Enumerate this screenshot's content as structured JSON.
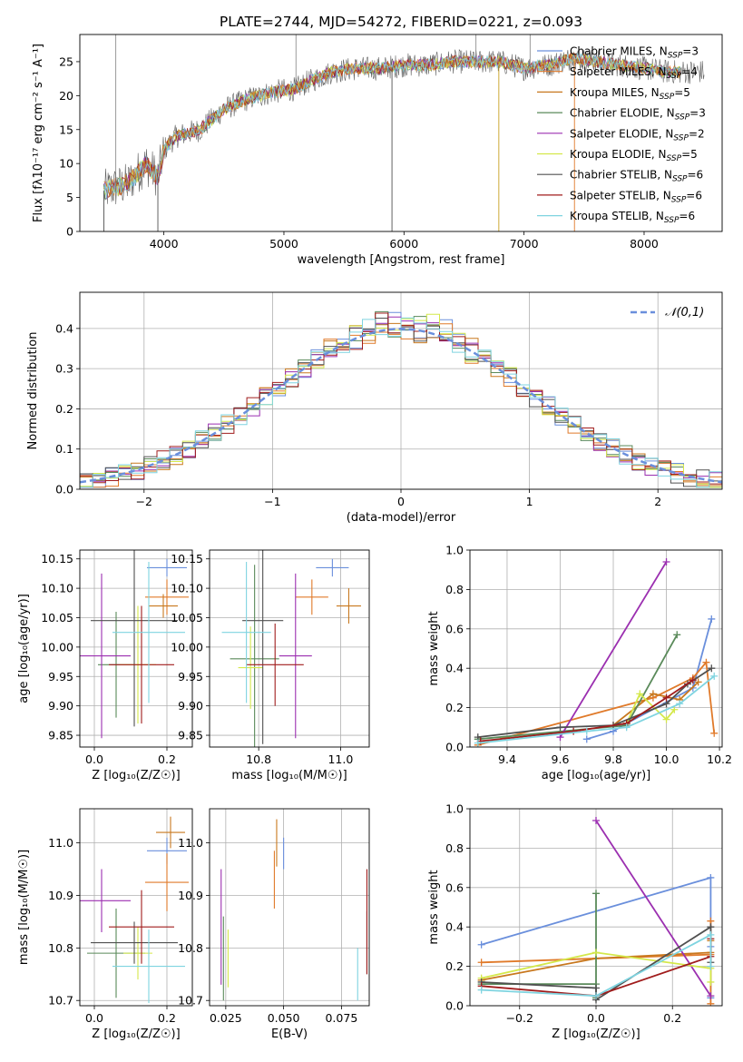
{
  "figure_title": "PLATE=2744, MJD=54272, FIBERID=0221, z=0.093",
  "models": [
    {
      "name": "Chabrier MILES",
      "nssp": "3",
      "color": "#6a8fdc"
    },
    {
      "name": "Salpeter MILES",
      "nssp": "4",
      "color": "#e07a2a"
    },
    {
      "name": "Kroupa MILES",
      "nssp": "5",
      "color": "#c8781e"
    },
    {
      "name": "Chabrier ELODIE",
      "nssp": "3",
      "color": "#5a8a5a"
    },
    {
      "name": "Salpeter ELODIE",
      "nssp": "2",
      "color": "#9b2fb0"
    },
    {
      "name": "Kroupa ELODIE",
      "nssp": "5",
      "color": "#d4e84a"
    },
    {
      "name": "Chabrier STELIB",
      "nssp": "6",
      "color": "#505050"
    },
    {
      "name": "Salpeter STELIB",
      "nssp": "6",
      "color": "#a01c1c"
    },
    {
      "name": "Kroupa STELIB",
      "nssp": "6",
      "color": "#7fd4e0"
    }
  ],
  "chart_data": [
    {
      "id": "spectrum",
      "type": "line",
      "title": "PLATE=2744, MJD=54272, FIBERID=0221, z=0.093",
      "xlabel": "wavelength [Angstrom, rest frame]",
      "ylabel": "Flux [fλ10⁻¹⁷ erg cm⁻² s⁻¹ A⁻¹]",
      "xlim": [
        3300,
        8650
      ],
      "ylim": [
        0,
        29
      ],
      "xticks": [
        4000,
        5000,
        6000,
        7000,
        8000
      ],
      "yticks": [
        0,
        5,
        10,
        15,
        20,
        25
      ],
      "grid": false,
      "legend": "upper right",
      "continuum_points": [
        [
          3500,
          6
        ],
        [
          3700,
          7
        ],
        [
          3850,
          10
        ],
        [
          3950,
          8
        ],
        [
          4000,
          12
        ],
        [
          4100,
          14
        ],
        [
          4300,
          15
        ],
        [
          4500,
          18
        ],
        [
          4700,
          19.5
        ],
        [
          4900,
          20.5
        ],
        [
          5100,
          21
        ],
        [
          5200,
          22
        ],
        [
          5400,
          23.5
        ],
        [
          5600,
          24
        ],
        [
          5800,
          24
        ],
        [
          6000,
          24.5
        ],
        [
          6200,
          24.5
        ],
        [
          6400,
          25
        ],
        [
          6600,
          25
        ],
        [
          6800,
          25
        ],
        [
          7000,
          24
        ],
        [
          7200,
          24.5
        ],
        [
          7400,
          25.5
        ],
        [
          7600,
          25
        ],
        [
          7800,
          24.5
        ],
        [
          8000,
          24
        ],
        [
          8200,
          23.5
        ],
        [
          8400,
          23.5
        ]
      ],
      "spikes_down": [
        3500,
        3950,
        5900,
        6790,
        7420
      ],
      "spikes_up": [
        3600,
        5100,
        6600,
        7050
      ]
    },
    {
      "id": "residuals",
      "type": "step",
      "xlabel": "(data-model)/error",
      "ylabel": "Normed distribution",
      "xlim": [
        -2.5,
        2.5
      ],
      "ylim": [
        0,
        0.49
      ],
      "xticks": [
        -2,
        -1,
        0,
        1,
        2
      ],
      "yticks": [
        0.0,
        0.1,
        0.2,
        0.3,
        0.4
      ],
      "grid": true,
      "legend": "upper right",
      "reference": {
        "label": "𝒩(0,1)",
        "color": "#6a8fdc"
      },
      "bin_width": 0.1
    },
    {
      "id": "age_vs_Z",
      "type": "errorbar",
      "xlabel": "Z [log₁₀(Z/Z☉)]",
      "ylabel": "age  [log₁₀(age/yr)]",
      "xlim": [
        -0.04,
        0.27
      ],
      "ylim": [
        9.83,
        10.165
      ],
      "xticks": [
        0.0,
        0.2
      ],
      "yticks": [
        9.85,
        9.9,
        9.95,
        10.0,
        10.05,
        10.1,
        10.15
      ],
      "grid": true,
      "points": [
        {
          "m": 0,
          "x": 0.2,
          "xe": 0.055,
          "y": 10.135,
          "ye": 0.015
        },
        {
          "m": 1,
          "x": 0.2,
          "xe": 0.06,
          "y": 10.085,
          "ye": 0.03
        },
        {
          "m": 2,
          "x": 0.19,
          "xe": 0.04,
          "y": 10.07,
          "ye": 0.02
        },
        {
          "m": 3,
          "x": 0.06,
          "xe": 0.05,
          "y": 9.97,
          "ye": 0.09
        },
        {
          "m": 4,
          "x": 0.02,
          "xe": 0.08,
          "y": 9.985,
          "ye": 0.14
        },
        {
          "m": 5,
          "x": 0.12,
          "xe": 0.05,
          "y": 9.97,
          "ye": 0.1
        },
        {
          "m": 6,
          "x": 0.11,
          "xe": 0.12,
          "y": 10.045,
          "ye": 0.18
        },
        {
          "m": 7,
          "x": 0.13,
          "xe": 0.09,
          "y": 9.97,
          "ye": 0.1
        },
        {
          "m": 8,
          "x": 0.15,
          "xe": 0.1,
          "y": 10.025,
          "ye": 0.12
        }
      ]
    },
    {
      "id": "age_vs_mass",
      "type": "errorbar",
      "xlabel": "mass [log₁₀(M/M☉)]",
      "ylabel": "",
      "xlim": [
        10.68,
        11.07
      ],
      "ylim": [
        9.83,
        10.165
      ],
      "xticks": [
        10.8,
        11.0
      ],
      "yticks": [
        9.85,
        9.9,
        9.95,
        10.0,
        10.05,
        10.1,
        10.15
      ],
      "grid": true,
      "points": [
        {
          "m": 0,
          "x": 10.98,
          "xe": 0.04,
          "y": 10.135,
          "ye": 0.015
        },
        {
          "m": 1,
          "x": 10.93,
          "xe": 0.04,
          "y": 10.085,
          "ye": 0.03
        },
        {
          "m": 2,
          "x": 11.02,
          "xe": 0.03,
          "y": 10.07,
          "ye": 0.03
        },
        {
          "m": 3,
          "x": 10.79,
          "xe": 0.06,
          "y": 9.98,
          "ye": 0.16
        },
        {
          "m": 4,
          "x": 10.89,
          "xe": 0.04,
          "y": 9.985,
          "ye": 0.14
        },
        {
          "m": 5,
          "x": 10.78,
          "xe": 0.03,
          "y": 9.965,
          "ye": 0.07
        },
        {
          "m": 6,
          "x": 10.81,
          "xe": 0.05,
          "y": 10.045,
          "ye": 0.21
        },
        {
          "m": 7,
          "x": 10.84,
          "xe": 0.07,
          "y": 9.97,
          "ye": 0.07
        },
        {
          "m": 8,
          "x": 10.77,
          "xe": 0.06,
          "y": 10.025,
          "ye": 0.12
        }
      ]
    },
    {
      "id": "weight_vs_age",
      "type": "line",
      "xlabel": "age  [log₁₀(age/yr)]",
      "ylabel": "mass weight",
      "xlim": [
        9.26,
        10.21
      ],
      "ylim": [
        0,
        1.0
      ],
      "xticks": [
        9.4,
        9.6,
        9.8,
        10.0,
        10.2
      ],
      "yticks": [
        0.0,
        0.2,
        0.4,
        0.6,
        0.8,
        1.0
      ],
      "grid": true,
      "series": [
        {
          "m": 0,
          "x": [
            9.7,
            9.8,
            9.85,
            10.1,
            10.17
          ],
          "y": [
            0.04,
            0.08,
            0.12,
            0.3,
            0.65
          ]
        },
        {
          "m": 1,
          "x": [
            9.29,
            9.95,
            10.1,
            10.15,
            10.18
          ],
          "y": [
            0.01,
            0.25,
            0.35,
            0.43,
            0.07
          ]
        },
        {
          "m": 2,
          "x": [
            9.8,
            9.95,
            10.05,
            10.12
          ],
          "y": [
            0.11,
            0.27,
            0.24,
            0.33
          ]
        },
        {
          "m": 3,
          "x": [
            9.29,
            9.85,
            10.04
          ],
          "y": [
            0.04,
            0.11,
            0.57
          ]
        },
        {
          "m": 4,
          "x": [
            9.6,
            10.0
          ],
          "y": [
            0.05,
            0.94
          ]
        },
        {
          "m": 5,
          "x": [
            9.85,
            9.9,
            10.0,
            10.03
          ],
          "y": [
            0.12,
            0.27,
            0.14,
            0.19
          ]
        },
        {
          "m": 6,
          "x": [
            9.29,
            9.6,
            9.8,
            10.0,
            10.08,
            10.17
          ],
          "y": [
            0.05,
            0.1,
            0.11,
            0.22,
            0.32,
            0.4
          ]
        },
        {
          "m": 7,
          "x": [
            9.3,
            9.65,
            9.85,
            10.0,
            10.1
          ],
          "y": [
            0.03,
            0.08,
            0.12,
            0.25,
            0.34
          ]
        },
        {
          "m": 8,
          "x": [
            9.29,
            9.7,
            9.85,
            10.05,
            10.18
          ],
          "y": [
            0.02,
            0.08,
            0.1,
            0.22,
            0.36
          ]
        }
      ]
    },
    {
      "id": "mass_vs_Z",
      "type": "errorbar",
      "xlabel": "Z [log₁₀(Z/Z☉)]",
      "ylabel": "mass [log₁₀(M/M☉)]",
      "xlim": [
        -0.04,
        0.27
      ],
      "ylim": [
        10.69,
        11.065
      ],
      "xticks": [
        0.0,
        0.2
      ],
      "yticks": [
        10.7,
        10.8,
        10.9,
        11.0
      ],
      "grid": true,
      "points": [
        {
          "m": 0,
          "x": 0.2,
          "xe": 0.055,
          "y": 10.985,
          "ye": 0.025
        },
        {
          "m": 1,
          "x": 0.2,
          "xe": 0.06,
          "y": 10.925,
          "ye": 0.055
        },
        {
          "m": 2,
          "x": 0.21,
          "xe": 0.04,
          "y": 11.02,
          "ye": 0.03
        },
        {
          "m": 3,
          "x": 0.06,
          "xe": 0.08,
          "y": 10.79,
          "ye": 0.085
        },
        {
          "m": 4,
          "x": 0.02,
          "xe": 0.08,
          "y": 10.89,
          "ye": 0.06
        },
        {
          "m": 5,
          "x": 0.12,
          "xe": 0.04,
          "y": 10.79,
          "ye": 0.05
        },
        {
          "m": 6,
          "x": 0.11,
          "xe": 0.12,
          "y": 10.81,
          "ye": 0.04
        },
        {
          "m": 7,
          "x": 0.13,
          "xe": 0.09,
          "y": 10.84,
          "ye": 0.07
        },
        {
          "m": 8,
          "x": 0.15,
          "xe": 0.1,
          "y": 10.765,
          "ye": 0.07
        }
      ]
    },
    {
      "id": "mass_vs_EBV",
      "type": "errorbar",
      "xlabel": "E(B-V)",
      "ylabel": "",
      "xlim": [
        0.018,
        0.087
      ],
      "ylim": [
        10.69,
        11.065
      ],
      "xticks": [
        0.025,
        0.05,
        0.075
      ],
      "yticks": [
        10.7,
        10.8,
        10.9,
        11.0
      ],
      "grid": true,
      "points": [
        {
          "m": 0,
          "x": 0.05,
          "xe": 0.0,
          "y": 10.98,
          "ye": 0.03
        },
        {
          "m": 1,
          "x": 0.046,
          "xe": 0.0,
          "y": 10.93,
          "ye": 0.055
        },
        {
          "m": 2,
          "x": 0.047,
          "xe": 0.0,
          "y": 11.0,
          "ye": 0.045
        },
        {
          "m": 3,
          "x": 0.024,
          "xe": 0.0,
          "y": 10.78,
          "ye": 0.08
        },
        {
          "m": 4,
          "x": 0.023,
          "xe": 0.0,
          "y": 10.84,
          "ye": 0.11
        },
        {
          "m": 5,
          "x": 0.026,
          "xe": 0.0,
          "y": 10.78,
          "ye": 0.055
        },
        {
          "m": 6,
          "x": 0.086,
          "xe": 0.0,
          "y": 10.81,
          "ye": 0.06
        },
        {
          "m": 7,
          "x": 0.086,
          "xe": 0.0,
          "y": 10.85,
          "ye": 0.1
        },
        {
          "m": 8,
          "x": 0.082,
          "xe": 0.0,
          "y": 10.75,
          "ye": 0.05
        }
      ]
    },
    {
      "id": "weight_vs_Z",
      "type": "line",
      "xlabel": "Z [log₁₀(Z/Z☉)]",
      "ylabel": "mass weight",
      "xlim": [
        -0.33,
        0.33
      ],
      "ylim": [
        0,
        1.0
      ],
      "xticks": [
        -0.2,
        0.0,
        0.2
      ],
      "yticks": [
        0.0,
        0.2,
        0.4,
        0.6,
        0.8,
        1.0
      ],
      "grid": true,
      "series": [
        {
          "m": 0,
          "x": [
            -0.3,
            0.3,
            0.3,
            0.3
          ],
          "y": [
            0.31,
            0.65,
            0.3,
            0.04
          ]
        },
        {
          "m": 1,
          "x": [
            -0.3,
            0.3,
            0.3,
            0.3
          ],
          "y": [
            0.22,
            0.26,
            0.43,
            0.01
          ]
        },
        {
          "m": 2,
          "x": [
            -0.3,
            0.0,
            0.3,
            0.3
          ],
          "y": [
            0.13,
            0.24,
            0.27,
            0.33
          ]
        },
        {
          "m": 3,
          "x": [
            -0.3,
            0.0,
            0.0,
            0.0
          ],
          "y": [
            0.11,
            0.11,
            0.57,
            0.04
          ]
        },
        {
          "m": 4,
          "x": [
            0.0,
            0.3
          ],
          "y": [
            0.94,
            0.05
          ]
        },
        {
          "m": 5,
          "x": [
            -0.3,
            0.0,
            0.3,
            0.3
          ],
          "y": [
            0.14,
            0.27,
            0.19,
            0.12
          ]
        },
        {
          "m": 6,
          "x": [
            -0.3,
            0.0,
            0.0,
            0.3,
            0.3
          ],
          "y": [
            0.12,
            0.09,
            0.03,
            0.4,
            0.22
          ]
        },
        {
          "m": 7,
          "x": [
            -0.3,
            0.0,
            0.3,
            0.3
          ],
          "y": [
            0.1,
            0.05,
            0.25,
            0.34
          ]
        },
        {
          "m": 8,
          "x": [
            -0.3,
            0.0,
            0.3,
            0.3
          ],
          "y": [
            0.08,
            0.05,
            0.36,
            0.2
          ]
        }
      ]
    }
  ]
}
